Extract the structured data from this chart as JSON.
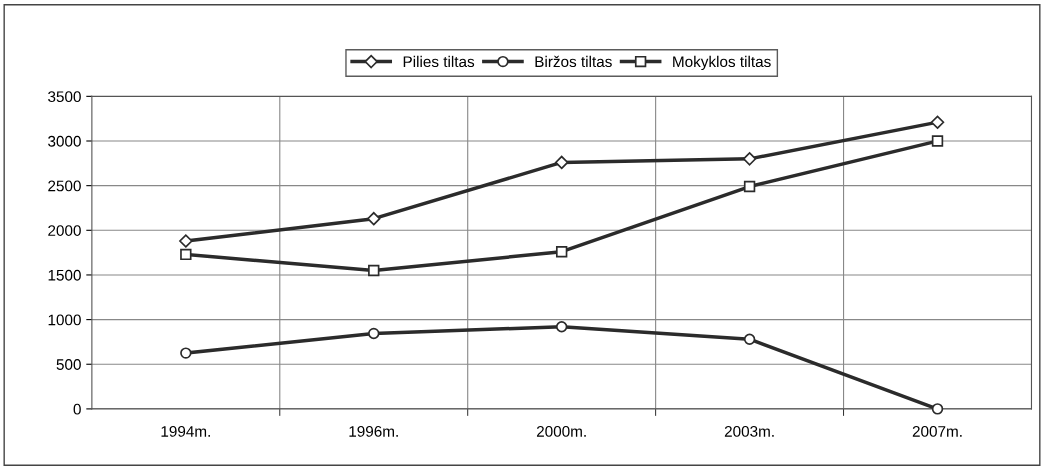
{
  "chart_data": {
    "type": "line",
    "categories": [
      "1994m.",
      "1996m.",
      "2000m.",
      "2003m.",
      "2007m."
    ],
    "series": [
      {
        "name": "Pilies tiltas",
        "color": "#2b2b2b",
        "marker": "diamond",
        "values": [
          1880,
          2130,
          2760,
          2800,
          3210
        ]
      },
      {
        "name": "Biržos tiltas",
        "color": "#2b2b2b",
        "marker": "circle",
        "values": [
          625,
          845,
          920,
          780,
          0
        ]
      },
      {
        "name": "Mokyklos tiltas",
        "color": "#2b2b2b",
        "marker": "square",
        "values": [
          1730,
          1550,
          1760,
          2490,
          3000
        ]
      }
    ],
    "ylim": [
      0,
      3500
    ],
    "yticks": [
      0,
      500,
      1000,
      1500,
      2000,
      2500,
      3000,
      3500
    ],
    "grid": true,
    "legend": "top",
    "line_style": "solid"
  }
}
